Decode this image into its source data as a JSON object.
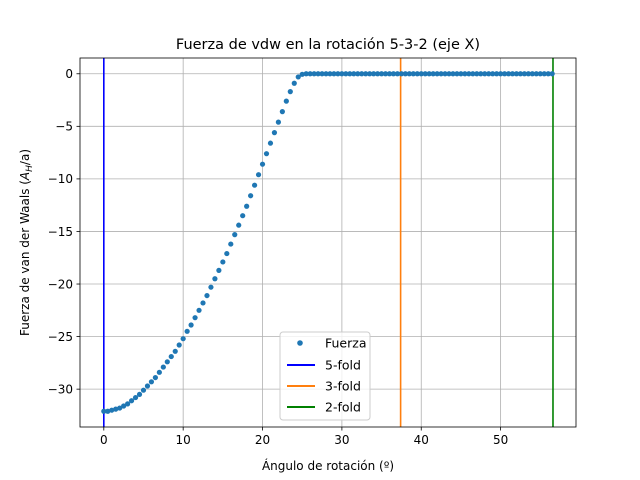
{
  "chart_data": {
    "type": "scatter",
    "title": "Fuerza de vdw en la rotación 5-3-2 (eje X)",
    "xlabel": "Ángulo de rotación (º)",
    "ylabel_prefix": "Fuerza de van der Waals (",
    "ylabel_math_main": "A",
    "ylabel_math_sub": "H",
    "ylabel_suffix": "/a)",
    "xlim": [
      -3.0,
      59.5
    ],
    "ylim": [
      -33.6,
      1.5
    ],
    "grid": true,
    "legend_position": "lower-center",
    "x_ticks": [
      0,
      10,
      20,
      30,
      40,
      50
    ],
    "x_tick_labels": [
      "0",
      "10",
      "20",
      "30",
      "40",
      "50"
    ],
    "y_ticks": [
      0,
      -5,
      -10,
      -15,
      -20,
      -25,
      -30
    ],
    "y_tick_labels": [
      "0",
      "−5",
      "−10",
      "−15",
      "−20",
      "−25",
      "−30"
    ],
    "series": [
      {
        "name": "Fuerza",
        "kind": "points",
        "color": "#1f77b4",
        "x_start": 0,
        "x_step": 0.5,
        "y": [
          -32.1,
          -32.1,
          -32.0,
          -31.9,
          -31.8,
          -31.6,
          -31.4,
          -31.1,
          -30.8,
          -30.5,
          -30.1,
          -29.7,
          -29.3,
          -28.9,
          -28.4,
          -27.9,
          -27.4,
          -26.9,
          -26.4,
          -25.8,
          -25.2,
          -24.5,
          -23.9,
          -23.2,
          -22.5,
          -21.8,
          -21.1,
          -20.3,
          -19.5,
          -18.7,
          -17.9,
          -17.1,
          -16.2,
          -15.3,
          -14.4,
          -13.5,
          -12.6,
          -11.6,
          -10.6,
          -9.6,
          -8.6,
          -7.6,
          -6.6,
          -5.6,
          -4.6,
          -3.6,
          -2.6,
          -1.7,
          -0.9,
          -0.3,
          -0.05,
          0,
          0,
          0,
          0,
          0,
          0,
          0,
          0,
          0,
          0,
          0,
          0,
          0,
          0,
          0,
          0,
          0,
          0,
          0,
          0,
          0,
          0,
          0,
          0,
          0,
          0,
          0,
          0,
          0,
          0,
          0,
          0,
          0,
          0,
          0,
          0,
          0,
          0,
          0,
          0,
          0,
          0,
          0,
          0,
          0,
          0,
          0,
          0,
          0,
          0,
          0,
          0,
          0,
          0,
          0,
          0,
          0,
          0,
          0,
          0,
          0,
          0,
          0
        ]
      },
      {
        "name": "5-fold",
        "kind": "vline",
        "color": "#0000ff",
        "x": 0
      },
      {
        "name": "3-fold",
        "kind": "vline",
        "color": "#ff7f0e",
        "x": 37.4
      },
      {
        "name": "2-fold",
        "kind": "vline",
        "color": "#008000",
        "x": 56.6
      }
    ]
  }
}
